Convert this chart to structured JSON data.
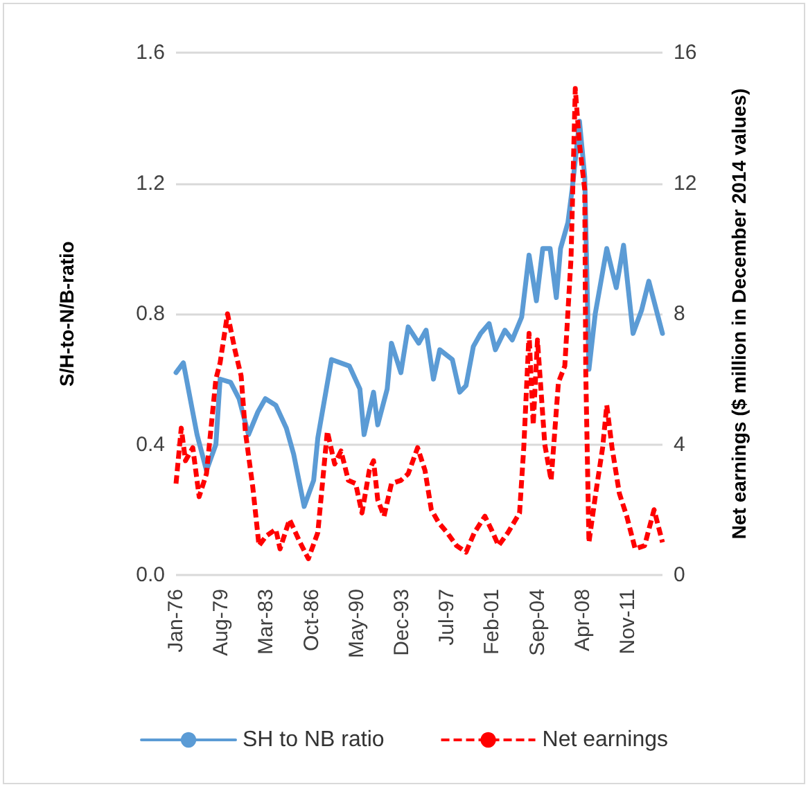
{
  "chart_data": {
    "type": "line",
    "ylabel": "S/H-to-N/B-ratio",
    "y2label": "Net earnings ($ million in December 2014 values)",
    "xlim": [
      "1976-01",
      "2014-08"
    ],
    "xticks": [
      {
        "value": "1976-01",
        "label": "Jan-76"
      },
      {
        "value": "1979-08",
        "label": "Aug-79"
      },
      {
        "value": "1983-03",
        "label": "Mar-83"
      },
      {
        "value": "1986-10",
        "label": "Oct-86"
      },
      {
        "value": "1990-05",
        "label": "May-90"
      },
      {
        "value": "1993-12",
        "label": "Dec-93"
      },
      {
        "value": "1997-07",
        "label": "Jul-97"
      },
      {
        "value": "2001-02",
        "label": "Feb-01"
      },
      {
        "value": "2004-09",
        "label": "Sep-04"
      },
      {
        "value": "2008-04",
        "label": "Apr-08"
      },
      {
        "value": "2011-11",
        "label": "Nov-11"
      }
    ],
    "ylim": [
      0,
      1.6
    ],
    "yticks": [
      {
        "value": 0,
        "label": "0.0"
      },
      {
        "value": 0.4,
        "label": "0.4"
      },
      {
        "value": 0.8,
        "label": "0.8"
      },
      {
        "value": 1.2,
        "label": "1.2"
      },
      {
        "value": 1.6,
        "label": "1.6"
      }
    ],
    "y2lim": [
      0,
      16
    ],
    "y2ticks": [
      0,
      4,
      8,
      12,
      16
    ],
    "grid": "y",
    "legend": "bottom",
    "marker": "none",
    "series": [
      {
        "name": "SH to NB ratio",
        "color": "#5b9bd5",
        "line_style": "solid",
        "x": [
          "1976-01",
          "1976-08",
          "1977-09",
          "1978-06",
          "1979-03",
          "1979-07",
          "1980-05",
          "1981-01",
          "1981-10",
          "1982-07",
          "1983-02",
          "1983-12",
          "1984-10",
          "1985-05",
          "1986-03",
          "1986-12",
          "1987-04",
          "1988-05",
          "1989-10",
          "1990-08",
          "1990-12",
          "1991-09",
          "1992-01",
          "1992-10",
          "1993-02",
          "1993-11",
          "1994-06",
          "1995-04",
          "1995-11",
          "1996-06",
          "1996-12",
          "1997-12",
          "1998-07",
          "1999-01",
          "1999-08",
          "2000-03",
          "2000-11",
          "2001-05",
          "2002-02",
          "2002-09",
          "2003-06",
          "2004-01",
          "2004-08",
          "2005-02",
          "2005-09",
          "2006-03",
          "2006-07",
          "2007-02",
          "2007-06",
          "2008-01",
          "2008-06",
          "2008-10",
          "2009-04",
          "2010-03",
          "2010-12",
          "2011-07",
          "2012-04",
          "2012-12",
          "2013-07",
          "2014-08"
        ],
        "values": [
          0.62,
          0.65,
          0.43,
          0.32,
          0.4,
          0.6,
          0.59,
          0.54,
          0.43,
          0.5,
          0.54,
          0.52,
          0.45,
          0.37,
          0.21,
          0.29,
          0.42,
          0.66,
          0.64,
          0.57,
          0.43,
          0.56,
          0.46,
          0.57,
          0.71,
          0.62,
          0.76,
          0.71,
          0.75,
          0.6,
          0.69,
          0.66,
          0.56,
          0.58,
          0.7,
          0.74,
          0.77,
          0.69,
          0.75,
          0.72,
          0.79,
          0.98,
          0.84,
          1.0,
          1.0,
          0.85,
          1.0,
          1.08,
          1.18,
          1.39,
          1.22,
          0.63,
          0.8,
          1.0,
          0.88,
          1.01,
          0.74,
          0.81,
          0.9,
          0.74
        ]
      },
      {
        "name": "Net earnings",
        "color": "#ff0000",
        "line_style": "dashed",
        "axis": "y2",
        "x": [
          "1976-01",
          "1976-06",
          "1976-10",
          "1977-05",
          "1977-11",
          "1978-06",
          "1979-03",
          "1979-07",
          "1980-02",
          "1980-09",
          "1981-03",
          "1981-07",
          "1982-02",
          "1982-08",
          "1983-03",
          "1983-12",
          "1984-04",
          "1985-01",
          "1985-11",
          "1986-07",
          "1987-04",
          "1988-01",
          "1988-08",
          "1989-02",
          "1989-09",
          "1990-04",
          "1990-10",
          "1991-05",
          "1991-09",
          "1992-01",
          "1992-07",
          "1993-02",
          "1993-11",
          "1994-06",
          "1995-03",
          "1995-10",
          "1996-04",
          "1996-11",
          "1997-07",
          "1998-04",
          "1999-01",
          "1999-09",
          "2000-07",
          "2001-01",
          "2001-08",
          "2002-05",
          "2003-04",
          "2003-08",
          "2004-01",
          "2004-05",
          "2004-09",
          "2005-04",
          "2005-10",
          "2006-05",
          "2006-11",
          "2007-05",
          "2007-09",
          "2008-01",
          "2008-06",
          "2008-07",
          "2008-10",
          "2009-04",
          "2009-11",
          "2010-03",
          "2010-08",
          "2011-03",
          "2011-10",
          "2012-06",
          "2013-03",
          "2013-12",
          "2014-08"
        ],
        "values": [
          2.8,
          4.5,
          3.5,
          3.9,
          2.4,
          3.1,
          6.0,
          6.5,
          8.0,
          6.9,
          6.1,
          4.4,
          2.7,
          0.9,
          1.2,
          1.4,
          0.8,
          1.7,
          1.0,
          0.5,
          1.3,
          4.4,
          3.4,
          3.8,
          2.9,
          2.8,
          1.9,
          3.2,
          3.5,
          2.3,
          1.8,
          2.8,
          2.9,
          3.1,
          3.9,
          3.2,
          2.0,
          1.6,
          1.3,
          0.9,
          0.7,
          1.3,
          1.8,
          1.4,
          0.9,
          1.3,
          1.9,
          3.9,
          7.4,
          4.6,
          7.2,
          4.0,
          2.9,
          5.9,
          6.4,
          9.7,
          14.9,
          13.2,
          11.8,
          6.2,
          1.0,
          2.4,
          3.9,
          5.2,
          3.9,
          2.5,
          1.8,
          0.8,
          0.9,
          2.0,
          1.0
        ]
      }
    ]
  }
}
